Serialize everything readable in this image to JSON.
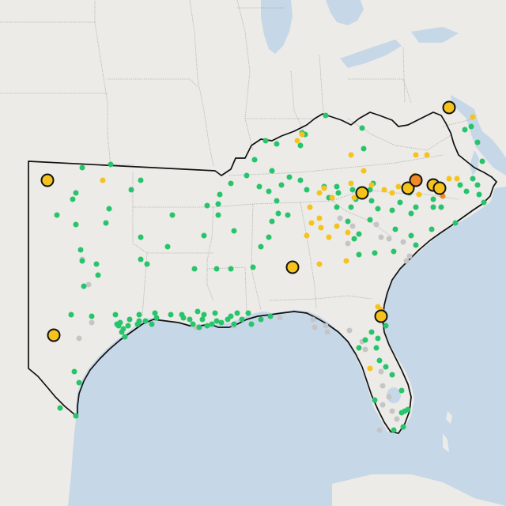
{
  "map": {
    "colors": {
      "land": "#ecebe7",
      "water": "#c6d7e8",
      "border": "#9a9a9a",
      "region_outline": "#111111",
      "green": "#27c46b",
      "gray": "#c5c5c5",
      "yellow": "#f5c31c",
      "orange": "#ef8a24",
      "marker_stroke": "#111111"
    },
    "legend_levels": [
      "green",
      "gray",
      "yellow",
      "orange"
    ],
    "stations": {
      "green": 166,
      "gray": 28,
      "yellow": 36,
      "orange": 1,
      "large_yellow": 11,
      "large_orange": 1
    }
  }
}
